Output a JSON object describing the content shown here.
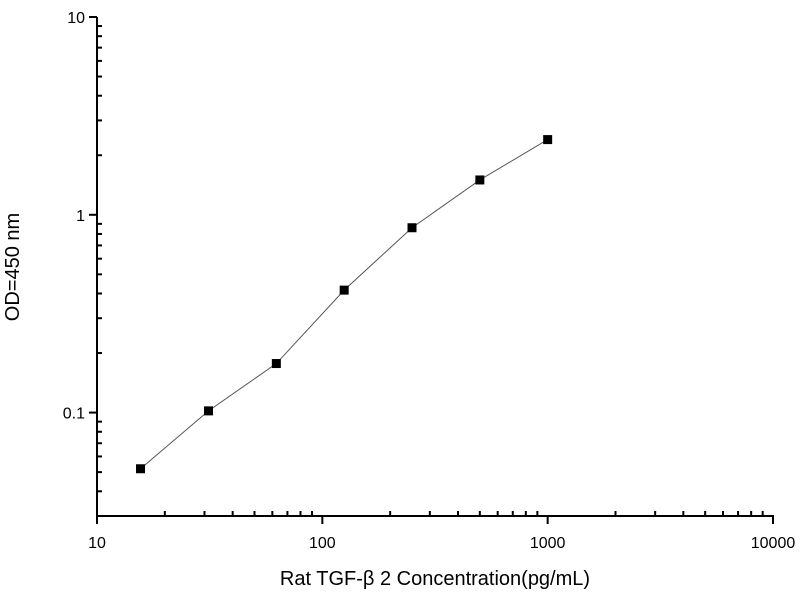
{
  "chart_data": {
    "type": "line",
    "title": "",
    "xlabel": "Rat  TGF-β 2 Concentration(pg/mL)",
    "ylabel": "OD=450 nm",
    "xscale": "log",
    "yscale": "log",
    "xlim": [
      10,
      10000
    ],
    "ylim": [
      0.03,
      10
    ],
    "xticks": [
      10,
      100,
      1000,
      10000
    ],
    "xtick_labels": [
      "10",
      "100",
      "1000",
      "10000"
    ],
    "yticks": [
      0.1,
      1,
      10
    ],
    "ytick_labels": [
      "0.1",
      "1",
      "10"
    ],
    "grid": false,
    "marker": "square",
    "color": "#000000",
    "series": [
      {
        "x": [
          15.6,
          31.25,
          62.5,
          125,
          250,
          500,
          1000
        ],
        "y": [
          0.052,
          0.102,
          0.177,
          0.416,
          0.86,
          1.5,
          2.4
        ]
      }
    ]
  }
}
